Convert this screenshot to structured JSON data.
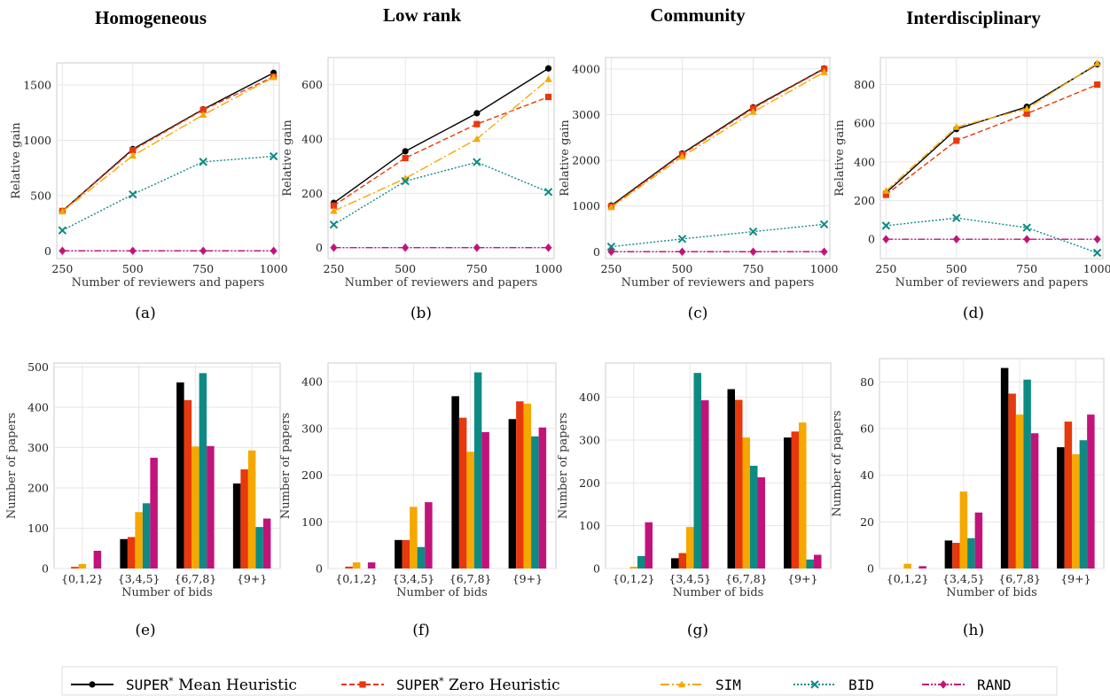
{
  "column_titles": [
    "Homogeneous",
    "Low rank",
    "Community",
    "Interdisciplinary"
  ],
  "styles": {
    "SUPER* Mean Heuristic": {
      "color": "#000000",
      "marker": "circle",
      "dash": ""
    },
    "SUPER* Zero Heuristic": {
      "color": "#e8380d",
      "marker": "square",
      "dash": "6,3"
    },
    "SIM": {
      "color": "#f5a800",
      "marker": "triangle",
      "dash": "10,3,2,3"
    },
    "BID": {
      "color": "#0e8a84",
      "marker": "x",
      "dash": "2,2"
    },
    "RAND": {
      "color": "#c2137b",
      "marker": "diamond",
      "dash": "8,2,2,2,2,2"
    }
  },
  "legend": {
    "items": [
      {
        "key": "SUPER* Mean Heuristic",
        "mono": "SUPER",
        "sup": "*",
        "text": "Mean Heuristic"
      },
      {
        "key": "SUPER* Zero Heuristic",
        "mono": "SUPER",
        "sup": "*",
        "text": "Zero Heuristic"
      },
      {
        "key": "SIM",
        "mono": "SIM",
        "sup": "",
        "text": ""
      },
      {
        "key": "BID",
        "mono": "BID",
        "sup": "",
        "text": ""
      },
      {
        "key": "RAND",
        "mono": "RAND",
        "sup": "",
        "text": ""
      }
    ]
  },
  "chart_data": [
    {
      "panel": "(a)",
      "title": "Homogeneous",
      "type": "line",
      "xlabel": "Number of reviewers and papers",
      "ylabel": "Relative gain",
      "x": [
        250,
        500,
        750,
        1000
      ],
      "xlim": [
        230,
        1020
      ],
      "ylim": [
        -70,
        1700
      ],
      "yticks": [
        0,
        500,
        1000,
        1500
      ],
      "grid": true,
      "series": [
        {
          "name": "SUPER* Mean Heuristic",
          "values": [
            360,
            920,
            1280,
            1610
          ]
        },
        {
          "name": "SUPER* Zero Heuristic",
          "values": [
            360,
            910,
            1275,
            1575
          ]
        },
        {
          "name": "SIM",
          "values": [
            355,
            860,
            1230,
            1570
          ]
        },
        {
          "name": "BID",
          "values": [
            185,
            510,
            805,
            855
          ]
        },
        {
          "name": "RAND",
          "values": [
            0,
            0,
            0,
            0
          ]
        }
      ]
    },
    {
      "panel": "(b)",
      "title": "Low rank",
      "type": "line",
      "xlabel": "Number of reviewers and papers",
      "ylabel": "Relative gain",
      "x": [
        250,
        500,
        750,
        1000
      ],
      "xlim": [
        230,
        1020
      ],
      "ylim": [
        -40,
        700
      ],
      "yticks": [
        0,
        200,
        400,
        600
      ],
      "grid": true,
      "series": [
        {
          "name": "SUPER* Mean Heuristic",
          "values": [
            165,
            355,
            495,
            660
          ]
        },
        {
          "name": "SUPER* Zero Heuristic",
          "values": [
            155,
            330,
            455,
            555
          ]
        },
        {
          "name": "SIM",
          "values": [
            135,
            255,
            400,
            620
          ]
        },
        {
          "name": "BID",
          "values": [
            85,
            245,
            315,
            205
          ]
        },
        {
          "name": "RAND",
          "values": [
            0,
            0,
            0,
            0
          ]
        }
      ]
    },
    {
      "panel": "(c)",
      "title": "Community",
      "type": "line",
      "xlabel": "Number of reviewers and papers",
      "ylabel": "Relative gain",
      "x": [
        250,
        500,
        750,
        1000
      ],
      "xlim": [
        230,
        1020
      ],
      "ylim": [
        -150,
        4250
      ],
      "yticks": [
        0,
        1000,
        2000,
        3000,
        4000
      ],
      "grid": true,
      "series": [
        {
          "name": "SUPER* Mean Heuristic",
          "values": [
            1010,
            2150,
            3160,
            4010
          ]
        },
        {
          "name": "SUPER* Zero Heuristic",
          "values": [
            990,
            2130,
            3140,
            4000
          ]
        },
        {
          "name": "SIM",
          "values": [
            970,
            2080,
            3060,
            3930
          ]
        },
        {
          "name": "BID",
          "values": [
            110,
            280,
            440,
            600
          ]
        },
        {
          "name": "RAND",
          "values": [
            0,
            0,
            0,
            0
          ]
        }
      ]
    },
    {
      "panel": "(d)",
      "title": "Interdisciplinary",
      "type": "line",
      "xlabel": "Number of reviewers and papers",
      "ylabel": "Relative gain",
      "x": [
        250,
        500,
        750,
        1000
      ],
      "xlim": [
        230,
        1020
      ],
      "ylim": [
        -100,
        940
      ],
      "yticks": [
        0,
        200,
        400,
        600,
        800
      ],
      "grid": true,
      "series": [
        {
          "name": "SUPER* Mean Heuristic",
          "values": [
            240,
            570,
            685,
            905
          ]
        },
        {
          "name": "SUPER* Zero Heuristic",
          "values": [
            230,
            510,
            650,
            800
          ]
        },
        {
          "name": "SIM",
          "values": [
            250,
            580,
            675,
            910
          ]
        },
        {
          "name": "BID",
          "values": [
            70,
            110,
            60,
            -70
          ]
        },
        {
          "name": "RAND",
          "values": [
            0,
            0,
            0,
            0
          ]
        }
      ]
    },
    {
      "panel": "(e)",
      "type": "bar",
      "xlabel": "Number of bids",
      "ylabel": "Number of papers",
      "categories": [
        "{0,1,2}",
        "{3,4,5}",
        "{6,7,8}",
        "{9+}"
      ],
      "ylim": [
        0,
        510
      ],
      "yticks": [
        0,
        100,
        200,
        300,
        400,
        500
      ],
      "grid": true,
      "series": [
        {
          "name": "SUPER* Mean Heuristic",
          "values": [
            0,
            73,
            462,
            211
          ]
        },
        {
          "name": "SUPER* Zero Heuristic",
          "values": [
            4,
            78,
            418,
            246
          ]
        },
        {
          "name": "SIM",
          "values": [
            11,
            140,
            303,
            293
          ]
        },
        {
          "name": "BID",
          "values": [
            0,
            162,
            485,
            103
          ]
        },
        {
          "name": "RAND",
          "values": [
            44,
            275,
            304,
            124
          ]
        }
      ]
    },
    {
      "panel": "(f)",
      "type": "bar",
      "xlabel": "Number of bids",
      "ylabel": "Number of papers",
      "categories": [
        "{0,1,2}",
        "{3,4,5}",
        "{6,7,8}",
        "{9+}"
      ],
      "ylim": [
        0,
        440
      ],
      "yticks": [
        0,
        100,
        200,
        300,
        400
      ],
      "grid": true,
      "series": [
        {
          "name": "SUPER* Mean Heuristic",
          "values": [
            0,
            61,
            369,
            320
          ]
        },
        {
          "name": "SUPER* Zero Heuristic",
          "values": [
            4,
            61,
            323,
            358
          ]
        },
        {
          "name": "SIM",
          "values": [
            13,
            132,
            250,
            353
          ]
        },
        {
          "name": "BID",
          "values": [
            0,
            46,
            420,
            283
          ]
        },
        {
          "name": "RAND",
          "values": [
            13,
            142,
            292,
            302
          ]
        }
      ]
    },
    {
      "panel": "(g)",
      "type": "bar",
      "xlabel": "Number of bids",
      "ylabel": "Number of papers",
      "categories": [
        "{0,1,2}",
        "{3,4,5}",
        "{6,7,8}",
        "{9+}"
      ],
      "ylim": [
        0,
        480
      ],
      "yticks": [
        0,
        100,
        200,
        300,
        400
      ],
      "grid": true,
      "series": [
        {
          "name": "SUPER* Mean Heuristic",
          "values": [
            0,
            24,
            419,
            306
          ]
        },
        {
          "name": "SUPER* Zero Heuristic",
          "values": [
            0,
            36,
            394,
            320
          ]
        },
        {
          "name": "SIM",
          "values": [
            4,
            97,
            306,
            341
          ]
        },
        {
          "name": "BID",
          "values": [
            29,
            457,
            240,
            21
          ]
        },
        {
          "name": "RAND",
          "values": [
            108,
            393,
            213,
            32
          ]
        }
      ]
    },
    {
      "panel": "(h)",
      "type": "bar",
      "xlabel": "Number of bids",
      "ylabel": "Number of papers",
      "categories": [
        "{0,1,2}",
        "{3,4,5}",
        "{6,7,8}",
        "{9+}"
      ],
      "ylim": [
        0,
        90
      ],
      "yticks": [
        0,
        20,
        40,
        60,
        80
      ],
      "grid": true,
      "series": [
        {
          "name": "SUPER* Mean Heuristic",
          "values": [
            0,
            12,
            86,
            52
          ]
        },
        {
          "name": "SUPER* Zero Heuristic",
          "values": [
            0,
            11,
            75,
            63
          ]
        },
        {
          "name": "SIM",
          "values": [
            2,
            33,
            66,
            49
          ]
        },
        {
          "name": "BID",
          "values": [
            0,
            13,
            81,
            55
          ]
        },
        {
          "name": "RAND",
          "values": [
            1,
            24,
            58,
            66
          ]
        }
      ]
    }
  ]
}
